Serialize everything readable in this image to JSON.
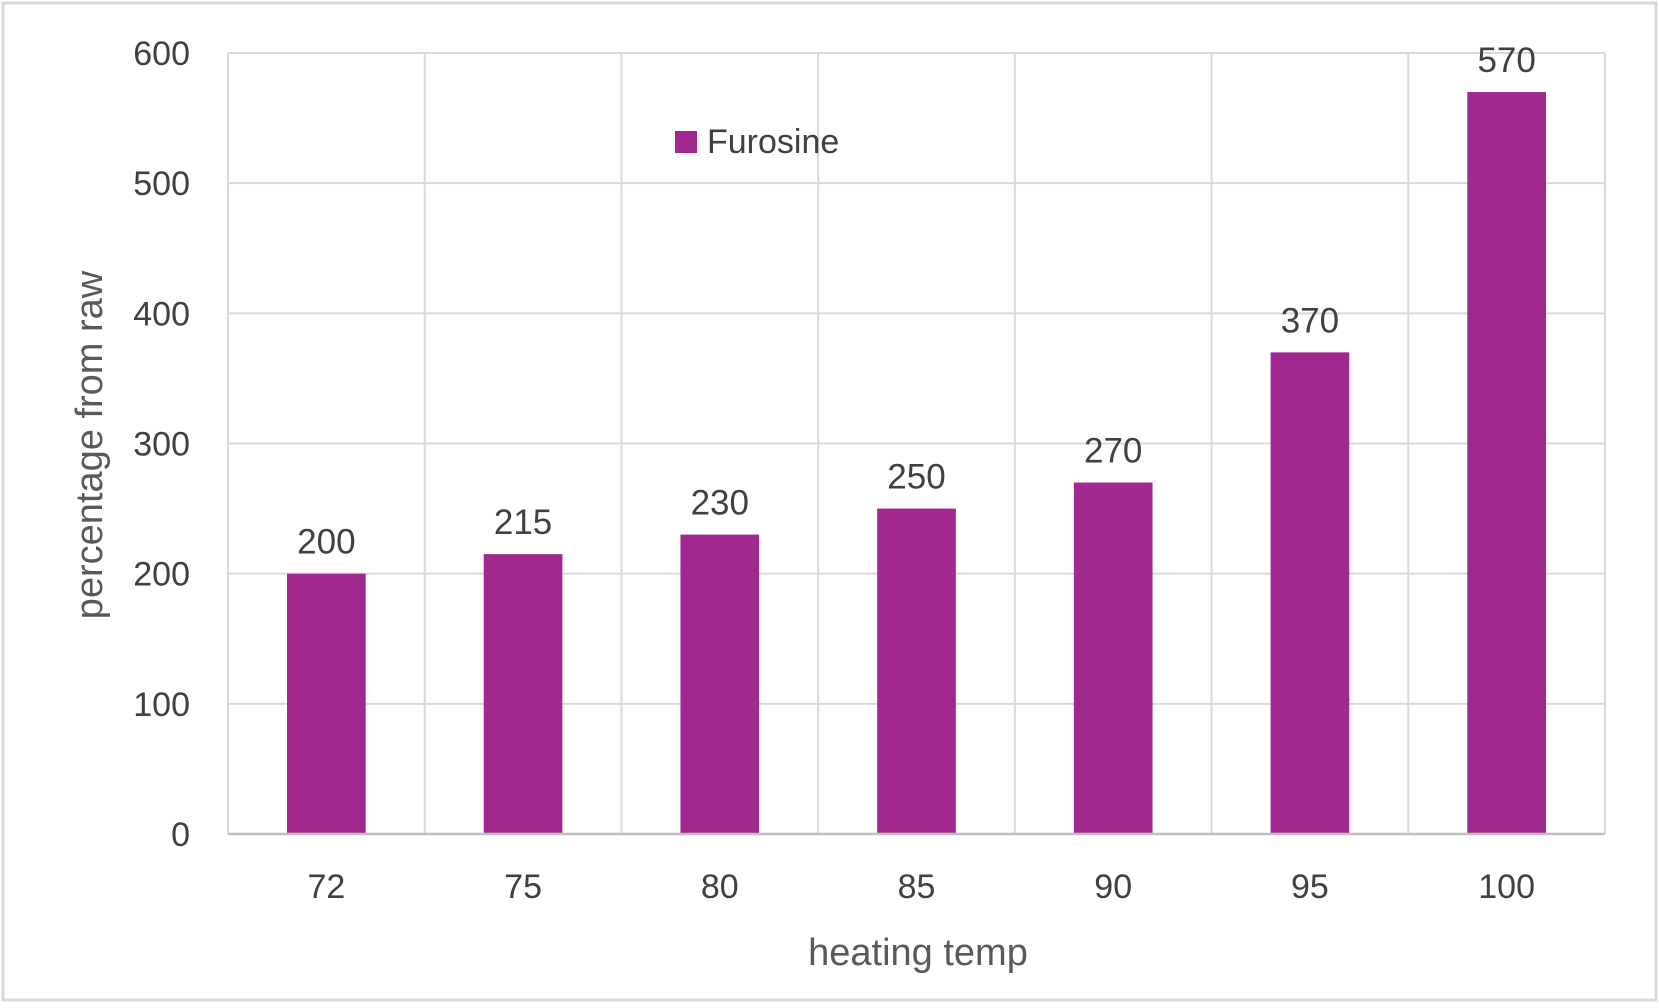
{
  "chart_data": {
    "type": "bar",
    "categories": [
      "72",
      "75",
      "80",
      "85",
      "90",
      "95",
      "100"
    ],
    "series": [
      {
        "name": "Furosine",
        "values": [
          200,
          215,
          230,
          250,
          270,
          370,
          570
        ]
      }
    ],
    "data_labels": [
      "200",
      "215",
      "230",
      "250",
      "270",
      "370",
      "570"
    ],
    "xlabel": "heating temp",
    "ylabel": "percentage from raw",
    "ylim": [
      0,
      600
    ],
    "yticks": [
      "0",
      "100",
      "200",
      "300",
      "400",
      "500",
      "600"
    ],
    "grid": true,
    "legend_position": "top-center",
    "colors": {
      "bar": "#A0288F",
      "grid": "#D9D9D9",
      "axis": "#BFBFBF",
      "border": "#D9D9D9"
    }
  }
}
